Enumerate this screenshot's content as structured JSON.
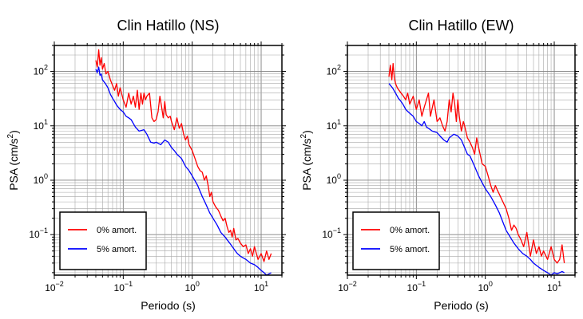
{
  "chart_data": [
    {
      "type": "line",
      "title": "Clin Hatillo (NS)",
      "xlabel": "Periodo (s)",
      "ylabel": "PSA (cm/s²)",
      "xscale": "log",
      "yscale": "log",
      "xlim": [
        0.01,
        20
      ],
      "ylim": [
        0.018,
        300
      ],
      "xticks": [
        0.01,
        0.1,
        1,
        10
      ],
      "yticks": [
        0.1,
        1,
        10,
        100
      ],
      "grid": true,
      "legend_position": "bottom-left",
      "series": [
        {
          "name": "0% amort.",
          "color": "#ff0000",
          "x": [
            0.04,
            0.042,
            0.044,
            0.046,
            0.048,
            0.05,
            0.053,
            0.056,
            0.06,
            0.065,
            0.07,
            0.075,
            0.08,
            0.085,
            0.09,
            0.1,
            0.11,
            0.12,
            0.13,
            0.14,
            0.15,
            0.16,
            0.17,
            0.18,
            0.19,
            0.2,
            0.21,
            0.22,
            0.24,
            0.26,
            0.28,
            0.3,
            0.32,
            0.34,
            0.36,
            0.38,
            0.4,
            0.42,
            0.45,
            0.48,
            0.5,
            0.55,
            0.6,
            0.65,
            0.7,
            0.75,
            0.8,
            0.85,
            0.9,
            1.0,
            1.1,
            1.2,
            1.3,
            1.4,
            1.5,
            1.6,
            1.7,
            1.8,
            1.9,
            2.0,
            2.2,
            2.4,
            2.6,
            2.8,
            3.0,
            3.2,
            3.4,
            3.6,
            3.8,
            4.0,
            4.3,
            4.6,
            5.0,
            5.5,
            6.0,
            6.5,
            7.0,
            7.5,
            8.0,
            9.0,
            10.0,
            11.0,
            12.0,
            13.0,
            14.0
          ],
          "y": [
            160,
            120,
            250,
            130,
            180,
            110,
            140,
            90,
            100,
            70,
            55,
            45,
            60,
            35,
            50,
            30,
            22,
            40,
            25,
            35,
            22,
            45,
            20,
            40,
            25,
            40,
            30,
            35,
            40,
            14,
            12,
            13,
            18,
            35,
            22,
            14,
            28,
            16,
            14,
            15,
            12,
            8.5,
            14,
            9.0,
            11,
            7.0,
            5.5,
            6.5,
            4.5,
            3.5,
            2.5,
            1.8,
            1.5,
            1.4,
            1.0,
            1.2,
            0.8,
            0.5,
            0.6,
            0.4,
            0.32,
            0.28,
            0.22,
            0.18,
            0.2,
            0.14,
            0.11,
            0.12,
            0.09,
            0.13,
            0.08,
            0.085,
            0.07,
            0.06,
            0.065,
            0.045,
            0.055,
            0.04,
            0.06,
            0.035,
            0.045,
            0.032,
            0.05,
            0.035,
            0.045
          ]
        },
        {
          "name": "5% amort.",
          "color": "#0000ff",
          "x": [
            0.04,
            0.042,
            0.044,
            0.046,
            0.048,
            0.05,
            0.055,
            0.06,
            0.065,
            0.07,
            0.075,
            0.08,
            0.09,
            0.1,
            0.11,
            0.12,
            0.13,
            0.14,
            0.15,
            0.17,
            0.2,
            0.22,
            0.25,
            0.28,
            0.3,
            0.35,
            0.4,
            0.45,
            0.5,
            0.55,
            0.6,
            0.7,
            0.8,
            0.9,
            1.0,
            1.2,
            1.4,
            1.6,
            1.8,
            2.0,
            2.3,
            2.6,
            3.0,
            3.5,
            4.0,
            4.5,
            5.0,
            6.0,
            7.0,
            8.0,
            9.0,
            10.0,
            11.0,
            12.0,
            13.0,
            14.0
          ],
          "y": [
            110,
            95,
            120,
            85,
            90,
            70,
            60,
            50,
            38,
            32,
            28,
            24,
            20,
            18,
            15,
            14,
            13,
            11,
            9.5,
            8.0,
            8.5,
            7.0,
            5.0,
            4.8,
            5.0,
            4.5,
            5.5,
            5.0,
            4.0,
            3.5,
            3.0,
            2.5,
            1.8,
            1.5,
            1.2,
            0.8,
            0.5,
            0.35,
            0.25,
            0.2,
            0.15,
            0.11,
            0.09,
            0.07,
            0.055,
            0.045,
            0.04,
            0.035,
            0.03,
            0.028,
            0.025,
            0.022,
            0.02,
            0.018,
            0.019,
            0.02
          ]
        }
      ]
    },
    {
      "type": "line",
      "title": "Clin Hatillo (EW)",
      "xlabel": "Periodo (s)",
      "ylabel": "PSA (cm/s²)",
      "xscale": "log",
      "yscale": "log",
      "xlim": [
        0.01,
        20
      ],
      "ylim": [
        0.018,
        300
      ],
      "xticks": [
        0.01,
        0.1,
        1,
        10
      ],
      "yticks": [
        0.1,
        1,
        10,
        100
      ],
      "grid": true,
      "legend_position": "bottom-left",
      "series": [
        {
          "name": "0% amort.",
          "color": "#ff0000",
          "x": [
            0.04,
            0.042,
            0.044,
            0.046,
            0.048,
            0.05,
            0.053,
            0.056,
            0.06,
            0.065,
            0.07,
            0.075,
            0.08,
            0.09,
            0.1,
            0.11,
            0.12,
            0.13,
            0.14,
            0.15,
            0.16,
            0.18,
            0.2,
            0.22,
            0.24,
            0.26,
            0.28,
            0.3,
            0.32,
            0.34,
            0.36,
            0.38,
            0.4,
            0.42,
            0.45,
            0.48,
            0.5,
            0.55,
            0.6,
            0.65,
            0.7,
            0.75,
            0.8,
            0.9,
            1.0,
            1.1,
            1.2,
            1.3,
            1.4,
            1.5,
            1.6,
            1.8,
            2.0,
            2.2,
            2.4,
            2.6,
            2.8,
            3.0,
            3.3,
            3.6,
            4.0,
            4.5,
            5.0,
            5.5,
            6.0,
            6.5,
            7.0,
            8.0,
            9.0,
            10.0,
            11.0,
            12.0,
            13.0,
            14.0
          ],
          "y": [
            80,
            130,
            70,
            140,
            75,
            60,
            50,
            45,
            40,
            35,
            30,
            40,
            25,
            35,
            20,
            30,
            15,
            22,
            30,
            40,
            15,
            30,
            12,
            14,
            10,
            8,
            12,
            30,
            18,
            40,
            25,
            12,
            30,
            15,
            8,
            12,
            10,
            6,
            5,
            4,
            3,
            6,
            4,
            2,
            1.8,
            1.2,
            0.8,
            0.6,
            0.8,
            0.65,
            0.55,
            0.4,
            0.3,
            0.2,
            0.12,
            0.15,
            0.13,
            0.1,
            0.08,
            0.06,
            0.11,
            0.04,
            0.08,
            0.045,
            0.06,
            0.04,
            0.05,
            0.035,
            0.06,
            0.035,
            0.03,
            0.035,
            0.065,
            0.03
          ]
        },
        {
          "name": "5% amort.",
          "color": "#0000ff",
          "x": [
            0.04,
            0.045,
            0.05,
            0.055,
            0.06,
            0.065,
            0.07,
            0.08,
            0.09,
            0.1,
            0.11,
            0.12,
            0.13,
            0.14,
            0.15,
            0.17,
            0.2,
            0.22,
            0.25,
            0.28,
            0.3,
            0.35,
            0.4,
            0.45,
            0.5,
            0.55,
            0.6,
            0.7,
            0.8,
            0.9,
            1.0,
            1.2,
            1.4,
            1.6,
            1.8,
            2.0,
            2.3,
            2.6,
            3.0,
            3.5,
            4.0,
            4.5,
            5.0,
            6.0,
            7.0,
            8.0,
            9.0,
            10.0,
            11.0,
            12.0,
            13.0,
            14.0
          ],
          "y": [
            60,
            50,
            40,
            32,
            28,
            24,
            20,
            17,
            15,
            12,
            11,
            10,
            12,
            9.5,
            9,
            8,
            7.5,
            6.5,
            5.5,
            5,
            6,
            7,
            6.5,
            5.5,
            4,
            3,
            2.8,
            1.8,
            1.2,
            0.9,
            0.7,
            0.5,
            0.35,
            0.25,
            0.17,
            0.12,
            0.09,
            0.07,
            0.055,
            0.045,
            0.04,
            0.035,
            0.03,
            0.025,
            0.022,
            0.02,
            0.018,
            0.02,
            0.019,
            0.02,
            0.021,
            0.02
          ]
        }
      ]
    }
  ]
}
